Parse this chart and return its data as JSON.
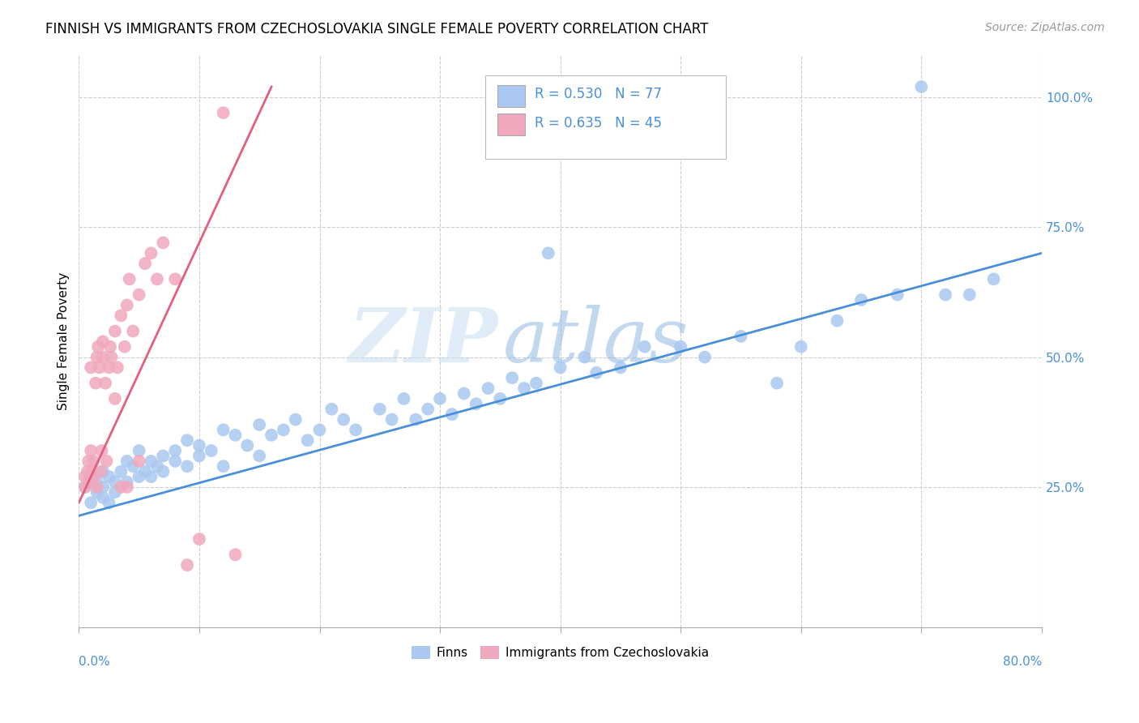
{
  "title": "FINNISH VS IMMIGRANTS FROM CZECHOSLOVAKIA SINGLE FEMALE POVERTY CORRELATION CHART",
  "source": "Source: ZipAtlas.com",
  "ylabel": "Single Female Poverty",
  "xlim": [
    0.0,
    0.8
  ],
  "ylim": [
    -0.02,
    1.08
  ],
  "finns_color": "#aac8f0",
  "immigrants_color": "#f0a8bc",
  "finns_line_color": "#4a90d9",
  "immigrants_line_color": "#e06080",
  "watermark": "ZIPatlas",
  "finns_scatter_x": [
    0.005,
    0.01,
    0.01,
    0.015,
    0.015,
    0.02,
    0.02,
    0.02,
    0.025,
    0.025,
    0.03,
    0.03,
    0.035,
    0.04,
    0.04,
    0.045,
    0.05,
    0.05,
    0.055,
    0.06,
    0.06,
    0.065,
    0.07,
    0.07,
    0.08,
    0.08,
    0.09,
    0.09,
    0.1,
    0.1,
    0.11,
    0.12,
    0.12,
    0.13,
    0.14,
    0.15,
    0.15,
    0.16,
    0.17,
    0.18,
    0.19,
    0.2,
    0.21,
    0.22,
    0.23,
    0.25,
    0.26,
    0.27,
    0.28,
    0.29,
    0.3,
    0.31,
    0.32,
    0.33,
    0.34,
    0.35,
    0.36,
    0.37,
    0.38,
    0.39,
    0.4,
    0.42,
    0.43,
    0.45,
    0.47,
    0.5,
    0.52,
    0.55,
    0.58,
    0.6,
    0.63,
    0.65,
    0.68,
    0.7,
    0.72,
    0.74,
    0.76
  ],
  "finns_scatter_y": [
    0.25,
    0.27,
    0.22,
    0.26,
    0.24,
    0.28,
    0.25,
    0.23,
    0.27,
    0.22,
    0.26,
    0.24,
    0.28,
    0.3,
    0.26,
    0.29,
    0.27,
    0.32,
    0.28,
    0.3,
    0.27,
    0.29,
    0.31,
    0.28,
    0.32,
    0.3,
    0.34,
    0.29,
    0.33,
    0.31,
    0.32,
    0.36,
    0.29,
    0.35,
    0.33,
    0.37,
    0.31,
    0.35,
    0.36,
    0.38,
    0.34,
    0.36,
    0.4,
    0.38,
    0.36,
    0.4,
    0.38,
    0.42,
    0.38,
    0.4,
    0.42,
    0.39,
    0.43,
    0.41,
    0.44,
    0.42,
    0.46,
    0.44,
    0.45,
    0.7,
    0.48,
    0.5,
    0.47,
    0.48,
    0.52,
    0.52,
    0.5,
    0.54,
    0.45,
    0.52,
    0.57,
    0.61,
    0.62,
    1.02,
    0.62,
    0.62,
    0.65
  ],
  "immigrants_scatter_x": [
    0.005,
    0.005,
    0.007,
    0.008,
    0.008,
    0.01,
    0.01,
    0.01,
    0.012,
    0.012,
    0.014,
    0.015,
    0.015,
    0.016,
    0.017,
    0.018,
    0.019,
    0.02,
    0.02,
    0.022,
    0.023,
    0.025,
    0.026,
    0.027,
    0.03,
    0.03,
    0.032,
    0.035,
    0.035,
    0.038,
    0.04,
    0.04,
    0.042,
    0.045,
    0.05,
    0.05,
    0.055,
    0.06,
    0.065,
    0.07,
    0.08,
    0.09,
    0.1,
    0.12,
    0.13
  ],
  "immigrants_scatter_y": [
    0.25,
    0.27,
    0.28,
    0.3,
    0.26,
    0.28,
    0.32,
    0.48,
    0.27,
    0.3,
    0.45,
    0.5,
    0.25,
    0.52,
    0.48,
    0.28,
    0.32,
    0.5,
    0.53,
    0.45,
    0.3,
    0.48,
    0.52,
    0.5,
    0.55,
    0.42,
    0.48,
    0.58,
    0.25,
    0.52,
    0.6,
    0.25,
    0.65,
    0.55,
    0.62,
    0.3,
    0.68,
    0.7,
    0.65,
    0.72,
    0.65,
    0.1,
    0.15,
    0.97,
    0.12
  ],
  "finns_trend_x": [
    0.0,
    0.8
  ],
  "finns_trend_y": [
    0.195,
    0.7
  ],
  "immigrants_trend_x": [
    0.0,
    0.16
  ],
  "immigrants_trend_y": [
    0.22,
    1.02
  ]
}
